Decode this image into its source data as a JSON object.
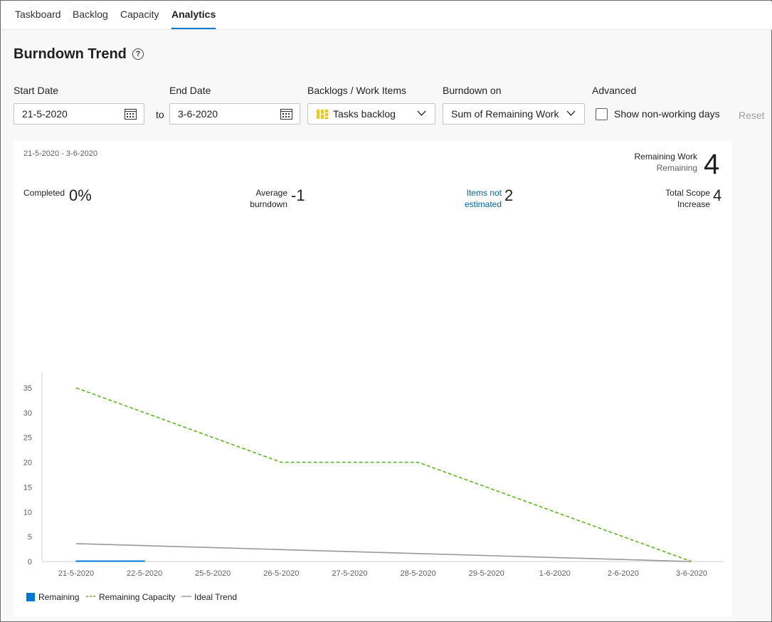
{
  "tabs": [
    {
      "label": "Taskboard"
    },
    {
      "label": "Backlog"
    },
    {
      "label": "Capacity"
    },
    {
      "label": "Analytics"
    }
  ],
  "page": {
    "title": "Burndown Trend",
    "help_icon": "?"
  },
  "filters": {
    "start_date_label": "Start Date",
    "start_date_value": "21-5-2020",
    "to_label": "to",
    "end_date_label": "End Date",
    "end_date_value": "3-6-2020",
    "backlogs_label": "Backlogs / Work Items",
    "backlogs_value": "Tasks backlog",
    "burndown_label": "Burndown on",
    "burndown_value": "Sum of Remaining Work",
    "advanced_label": "Advanced",
    "nonworking_label": "Show non-working days",
    "nonworking_checked": false,
    "reset_label": "Reset"
  },
  "summary": {
    "date_range": "21-5-2020 - 3-6-2020",
    "remaining_work_label": "Remaining Work",
    "remaining_sub_label": "Remaining",
    "remaining_value": "4",
    "completed_label": "Completed",
    "completed_value": "0%",
    "avg_burndown_line1": "Average",
    "avg_burndown_line2": "burndown",
    "avg_burndown_value": "-1",
    "items_not_estimated_line1": "Items not",
    "items_not_estimated_line2": "estimated",
    "items_not_estimated_value": "2",
    "scope_line1": "Total Scope",
    "scope_line2": "Increase",
    "scope_value": "4"
  },
  "colors": {
    "accent": "#0078d4",
    "remaining": "#0078d4",
    "remaining_capacity": "#60b323",
    "ideal_trend": "#999999"
  },
  "chart_data": {
    "type": "line",
    "categories": [
      "21-5-2020",
      "22-5-2020",
      "25-5-2020",
      "26-5-2020",
      "27-5-2020",
      "28-5-2020",
      "29-5-2020",
      "1-6-2020",
      "2-6-2020",
      "3-6-2020"
    ],
    "ylim": [
      0,
      35
    ],
    "yticks": [
      0,
      5,
      10,
      15,
      20,
      25,
      30,
      35
    ],
    "series": [
      {
        "name": "Remaining",
        "style": "bar",
        "values": [
          0,
          0,
          null,
          null,
          null,
          null,
          null,
          null,
          null,
          null
        ]
      },
      {
        "name": "Remaining Capacity",
        "style": "dashed",
        "values": [
          35,
          30,
          25,
          20,
          20,
          20,
          15,
          10,
          5,
          0
        ]
      },
      {
        "name": "Ideal Trend",
        "style": "solid",
        "values": [
          3.6,
          3.2,
          2.8,
          2.4,
          2.0,
          1.6,
          1.2,
          0.8,
          0.4,
          0
        ]
      }
    ],
    "legend_position": "bottom-left",
    "grid": false
  }
}
